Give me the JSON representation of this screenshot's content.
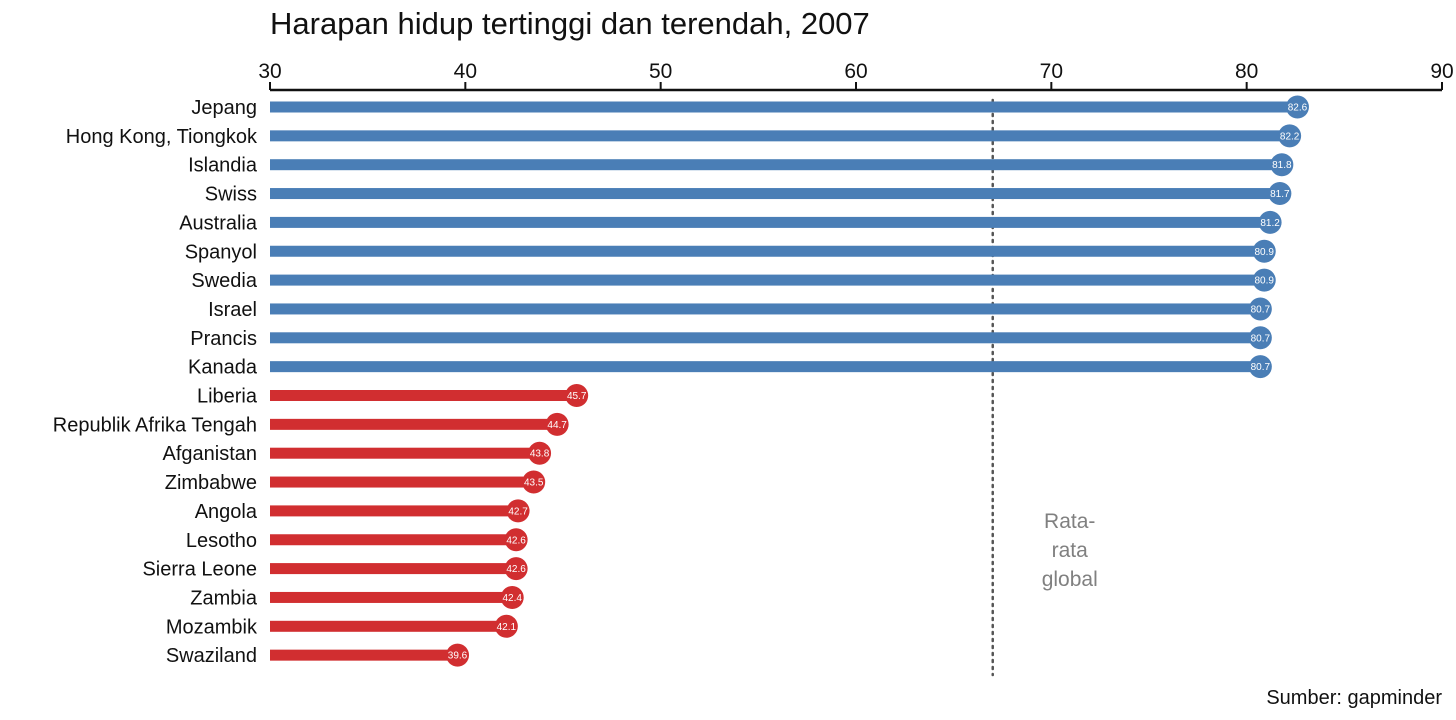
{
  "chart_data": {
    "type": "bar",
    "orientation": "horizontal",
    "title": "Harapan hidup tertinggi dan terendah, 2007",
    "xlim": [
      30,
      90
    ],
    "x_ticks": [
      "30",
      "40",
      "50",
      "60",
      "70",
      "80",
      "90"
    ],
    "x_axis_position": "top",
    "grid": false,
    "categories": [
      "Jepang",
      "Hong Kong, Tiongkok",
      "Islandia",
      "Swiss",
      "Australia",
      "Spanyol",
      "Swedia",
      "Israel",
      "Prancis",
      "Kanada",
      "Liberia",
      "Republik Afrika Tengah",
      "Afganistan",
      "Zimbabwe",
      "Angola",
      "Lesotho",
      "Sierra Leone",
      "Zambia",
      "Mozambik",
      "Swaziland"
    ],
    "values": [
      82.6,
      82.2,
      81.8,
      81.7,
      81.2,
      80.9,
      80.9,
      80.7,
      80.7,
      80.7,
      45.7,
      44.7,
      43.8,
      43.5,
      42.7,
      42.6,
      42.6,
      42.4,
      42.1,
      39.6
    ],
    "value_labels": [
      "82.6",
      "82.2",
      "81.8",
      "81.7",
      "81.2",
      "80.9",
      "80.9",
      "80.7",
      "80.7",
      "80.7",
      "45.7",
      "44.7",
      "43.8",
      "43.5",
      "42.7",
      "42.6",
      "42.6",
      "42.4",
      "42.1",
      "39.6"
    ],
    "group_colors": {
      "highest": "#4a7eb6",
      "lowest": "#d12e30"
    },
    "highest_count": 10,
    "reference_line": {
      "value": 67,
      "style": "dotted",
      "label_lines": [
        "Rata-",
        "rata",
        "global"
      ]
    },
    "source": "Sumber: gapminder"
  }
}
